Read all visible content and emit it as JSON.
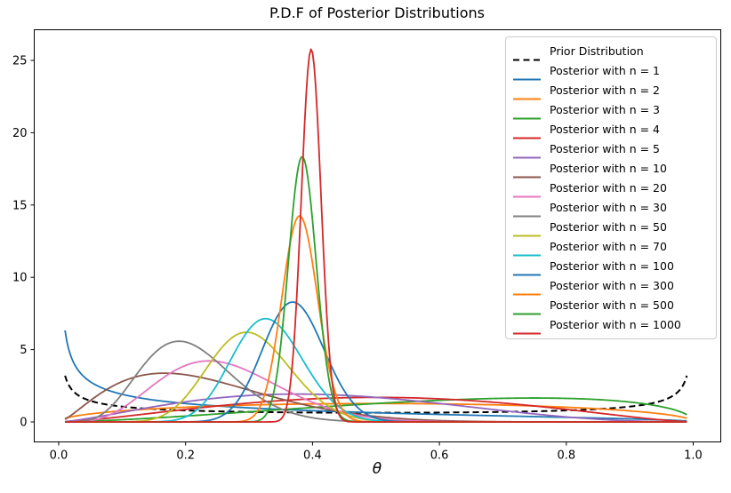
{
  "chart_data": {
    "type": "line",
    "title": "P.D.F of Posterior Distributions",
    "xlabel": "θ",
    "ylabel": "",
    "grid": false,
    "legend_position": "upper right",
    "xlim": [
      -0.039,
      1.039
    ],
    "ylim": [
      -1.29,
      27.15
    ],
    "x_sample_range": [
      0.01,
      0.99
    ],
    "x_ticks": [
      0.0,
      0.2,
      0.4,
      0.6,
      0.8,
      1.0
    ],
    "x_tick_labels": [
      "0.0",
      "0.2",
      "0.4",
      "0.6",
      "0.8",
      "1.0"
    ],
    "y_ticks": [
      0,
      5,
      10,
      15,
      20,
      25
    ],
    "y_tick_labels": [
      "0",
      "5",
      "10",
      "15",
      "20",
      "25"
    ],
    "series": [
      {
        "label": "Prior Distribution",
        "color": "#000000",
        "linestyle": "dashed",
        "distribution": "beta",
        "alpha": 0.5,
        "beta": 0.5,
        "shape": "U-shaped",
        "value_at_001": 3.2,
        "value_at_05": 0.64,
        "value_at_099": 3.2
      },
      {
        "label": "Posterior with n = 1",
        "color": "#1f77b4",
        "linestyle": "solid",
        "distribution": "beta",
        "alpha": 0.5,
        "beta": 1.5,
        "peak_x": 0.01,
        "peak_y": 6.33,
        "shape": "decreasing from left edge"
      },
      {
        "label": "Posterior with n = 2",
        "color": "#ff7f0e",
        "linestyle": "solid",
        "distribution": "beta",
        "alpha": 1.5,
        "beta": 1.5,
        "peak_x": 0.5,
        "peak_y": 1.27
      },
      {
        "label": "Posterior with n = 3",
        "color": "#2ca02c",
        "linestyle": "solid",
        "distribution": "beta",
        "alpha": 2.5,
        "beta": 1.5,
        "peak_x": 0.75,
        "peak_y": 1.65
      },
      {
        "label": "Posterior with n = 4",
        "color": "#d62728",
        "linestyle": "solid",
        "distribution": "beta",
        "alpha": 2.5,
        "beta": 2.5,
        "peak_x": 0.5,
        "peak_y": 1.7
      },
      {
        "label": "Posterior with n = 5",
        "color": "#9467bd",
        "linestyle": "solid",
        "distribution": "beta",
        "alpha": 2.5,
        "beta": 3.5,
        "peak_x": 0.375,
        "peak_y": 1.93
      },
      {
        "label": "Posterior with n = 10",
        "color": "#8c564b",
        "linestyle": "solid",
        "distribution": "beta",
        "alpha": 2.5,
        "beta": 8.5,
        "peak_x": 0.167,
        "peak_y": 3.37
      },
      {
        "label": "Posterior with n = 20",
        "color": "#e377c2",
        "linestyle": "solid",
        "distribution": "beta",
        "alpha": 5.5,
        "beta": 15.5,
        "peak_x": 0.237,
        "peak_y": 4.26
      },
      {
        "label": "Posterior with n = 30",
        "color": "#7f7f7f",
        "linestyle": "solid",
        "distribution": "beta",
        "alpha": 6.5,
        "beta": 24.5,
        "peak_x": 0.19,
        "peak_y": 5.55
      },
      {
        "label": "Posterior with n = 50",
        "color": "#bcbd22",
        "linestyle": "solid",
        "distribution": "beta",
        "alpha": 15.5,
        "beta": 35.5,
        "peak_x": 0.296,
        "peak_y": 6.26
      },
      {
        "label": "Posterior with n = 70",
        "color": "#17becf",
        "linestyle": "solid",
        "distribution": "beta",
        "alpha": 23.5,
        "beta": 47.5,
        "peak_x": 0.326,
        "peak_y": 7.1
      },
      {
        "label": "Posterior with n = 100",
        "color": "#1f77b4",
        "linestyle": "solid",
        "distribution": "beta",
        "alpha": 37.5,
        "beta": 63.5,
        "peak_x": 0.369,
        "peak_y": 8.34
      },
      {
        "label": "Posterior with n = 300",
        "color": "#ff7f0e",
        "linestyle": "solid",
        "distribution": "beta",
        "alpha": 114.5,
        "beta": 186.5,
        "peak_x": 0.38,
        "peak_y": 14.28
      },
      {
        "label": "Posterior with n = 500",
        "color": "#2ca02c",
        "linestyle": "solid",
        "distribution": "beta",
        "alpha": 192.5,
        "beta": 308.5,
        "peak_x": 0.384,
        "peak_y": 18.1
      },
      {
        "label": "Posterior with n = 1000",
        "color": "#d62728",
        "linestyle": "solid",
        "distribution": "beta",
        "alpha": 398.5,
        "beta": 602.5,
        "peak_x": 0.398,
        "peak_y": 25.7
      }
    ]
  }
}
